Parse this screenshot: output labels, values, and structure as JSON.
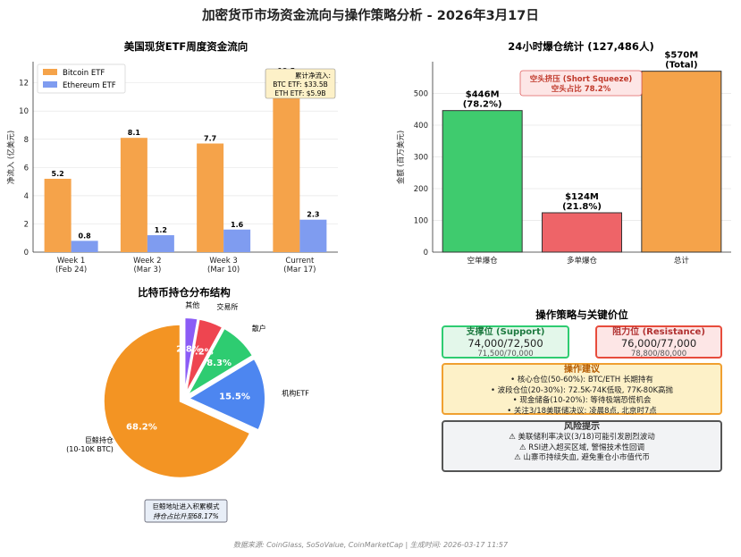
{
  "title": "加密货币市场资金流向与操作策略分析 - 2026年3月17日",
  "footer": "数据来源: CoinGlass, SoSoValue, CoinMarketCap | 生成时间: 2026-03-17 11:57",
  "colors": {
    "bitcoin": "#f5a34a",
    "ethereum": "#7f9cf0",
    "green": "#3fcb6e",
    "red": "#ee6468",
    "orange": "#f5a34a"
  },
  "chart_data": [
    {
      "type": "bar",
      "title": "美国现货ETF周度资金流向",
      "ylabel": "净流入 (亿美元)",
      "ylim": [
        0,
        13.5
      ],
      "yticks": [
        0,
        2,
        4,
        6,
        8,
        10,
        12
      ],
      "categories": [
        "Week 1\n(Feb 24)",
        "Week 2\n(Mar 3)",
        "Week 3\n(Mar 10)",
        "Current\n(Mar 17)"
      ],
      "series": [
        {
          "name": "Bitcoin ETF",
          "values": [
            5.2,
            8.1,
            7.7,
            12.5
          ],
          "labels": [
            "5.2",
            "8.1",
            "7.7",
            "12.5"
          ]
        },
        {
          "name": "Ethereum ETF",
          "values": [
            0.8,
            1.2,
            1.6,
            2.3
          ],
          "labels": [
            "0.8",
            "1.2",
            "1.6",
            "2.3"
          ]
        }
      ],
      "legend": "top-left",
      "annotation": [
        "累计净流入:",
        "BTC ETF: $33.5B",
        "ETH ETF: $5.9B"
      ]
    },
    {
      "type": "bar",
      "title": "24小时爆仓统计 (127,486人)",
      "ylabel": "金额 (百万美元)",
      "ylim": [
        0,
        600
      ],
      "yticks": [
        0,
        100,
        200,
        300,
        400,
        500
      ],
      "categories": [
        "空单爆仓",
        "多单爆仓",
        "总计"
      ],
      "values": [
        446,
        124,
        570
      ],
      "labels": [
        [
          "$446M",
          "(78.2%)"
        ],
        [
          "$124M",
          "(21.8%)"
        ],
        [
          "$570M",
          "(Total)"
        ]
      ],
      "annotation": [
        "空头挤压 (Short Squeeze)",
        "空头占比 78.2%"
      ]
    },
    {
      "type": "pie",
      "title": "比特币持仓分布结构",
      "slices": [
        {
          "label": "巨鲸持仓\n(10-10K BTC)",
          "value": 68.2,
          "pct": "68.2%"
        },
        {
          "label": "机构ETF",
          "value": 15.5,
          "pct": "15.5%"
        },
        {
          "label": "散户",
          "value": 8.3,
          "pct": "8.3%"
        },
        {
          "label": "交易所",
          "value": 5.2,
          "pct": "5.2%"
        },
        {
          "label": "其他",
          "value": 2.8,
          "pct": "2.8%"
        }
      ],
      "annotation": [
        "巨鲸地址进入积累模式",
        "持仓占比升至68.17%"
      ]
    }
  ],
  "strategy": {
    "title": "操作策略与关键价位",
    "support": {
      "title": "支撑位 (Support)",
      "value": "74,000/72,500",
      "sub": "71,500/70,000"
    },
    "resistance": {
      "title": "阻力位 (Resistance)",
      "value": "76,000/77,000",
      "sub": "78,800/80,000"
    },
    "advice": {
      "title": "操作建议",
      "lines": [
        "• 核心仓位(50-60%): BTC/ETH 长期持有",
        "• 波段仓位(20-30%): 72.5K-74K低吸, 77K-80K高抛",
        "• 现金储备(10-20%): 等待极端恐慌机会",
        "• 关注3/18美联储决议: 凌晨8点, 北京时7点"
      ]
    },
    "risk": {
      "title": "风险提示",
      "lines": [
        "⚠ 美联储利率决议(3/18)可能引发剧烈波动",
        "⚠ RSI进入超买区域, 警惕技术性回调",
        "⚠ 山寨币持续失血, 避免重仓小市值代币"
      ]
    }
  }
}
